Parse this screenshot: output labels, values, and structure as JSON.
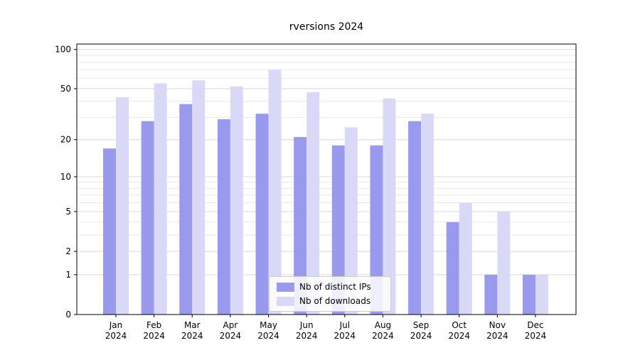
{
  "chart_data": {
    "type": "bar",
    "title": "rversions 2024",
    "categories": [
      "Jan",
      "Feb",
      "Mar",
      "Apr",
      "May",
      "Jun",
      "Jul",
      "Aug",
      "Sep",
      "Oct",
      "Nov",
      "Dec"
    ],
    "year_label": "2024",
    "series": [
      {
        "name": "Nb of distinct IPs",
        "color": "#9999ee",
        "values": [
          17,
          28,
          38,
          29,
          32,
          21,
          18,
          18,
          28,
          4,
          1,
          1
        ]
      },
      {
        "name": "Nb of downloads",
        "color": "#d9d9f7",
        "values": [
          43,
          55,
          58,
          52,
          70,
          47,
          25,
          42,
          32,
          6,
          5,
          1
        ]
      }
    ],
    "xlabel": "",
    "ylabel": "",
    "yscale": "log1p",
    "ylim": [
      0,
      110
    ],
    "yticks": [
      0,
      1,
      2,
      5,
      10,
      20,
      50,
      100
    ],
    "minor_gridlines": [
      3,
      4,
      6,
      7,
      8,
      9,
      30,
      40,
      60,
      70,
      80,
      90
    ],
    "grid": true,
    "legend_position": "lower center"
  },
  "colors": {
    "axis": "#000000",
    "tick_label": "#000000",
    "major_grid": "#d9d9d9",
    "minor_grid": "#e9e9e9",
    "background": "#ffffff",
    "legend_border": "#cccccc"
  }
}
